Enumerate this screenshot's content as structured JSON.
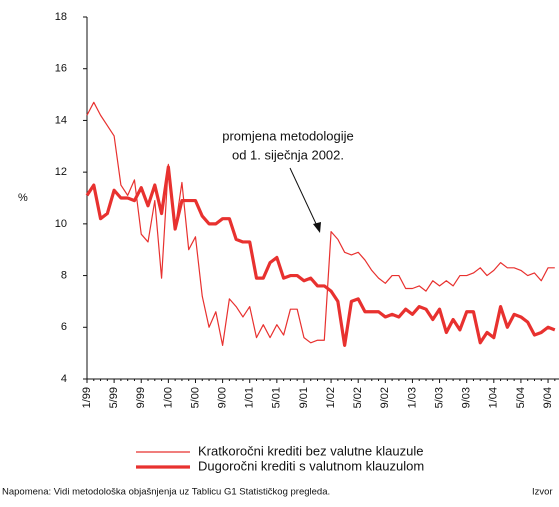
{
  "chart_data": {
    "type": "line",
    "y_label": "%",
    "annotation": [
      "promjena metodologije",
      "od 1. siječnja 2002."
    ],
    "note": "Napomena: Vidi metodološka objašnjenja uz Tablicu G1 Statističkog pregleda.",
    "source": "Izvor",
    "categories": [
      "1/99",
      null,
      null,
      null,
      "5/99",
      null,
      null,
      null,
      "9/99",
      null,
      null,
      null,
      "1/00",
      null,
      null,
      null,
      "5/00",
      null,
      null,
      null,
      "9/00",
      null,
      null,
      null,
      "1/01",
      null,
      null,
      null,
      "5/01",
      null,
      null,
      null,
      "9/01",
      null,
      null,
      null,
      "1/02",
      null,
      null,
      null,
      "5/02",
      null,
      null,
      null,
      "9/02",
      null,
      null,
      null,
      "1/03",
      null,
      null,
      null,
      "5/03",
      null,
      null,
      null,
      "9/03",
      null,
      null,
      null,
      "1/04",
      null,
      null,
      null,
      "5/04",
      null,
      null,
      null,
      "9/04",
      null
    ],
    "series": [
      {
        "name": "Kratkoročni krediti bez valutne klauzule",
        "color": "#e8312f",
        "width": 1.2,
        "values": [
          14.2,
          14.7,
          14.2,
          13.8,
          13.4,
          11.5,
          11.1,
          11.7,
          9.6,
          9.3,
          10.9,
          7.9,
          12.3,
          9.8,
          11.6,
          9.0,
          9.5,
          7.2,
          6.0,
          6.6,
          5.3,
          7.1,
          6.8,
          6.4,
          6.8,
          5.6,
          6.1,
          5.6,
          6.1,
          5.7,
          6.7,
          6.7,
          5.6,
          5.4,
          5.5,
          5.5,
          9.7,
          9.4,
          8.9,
          8.8,
          8.9,
          8.6,
          8.2,
          7.9,
          7.7,
          8.0,
          8.0,
          7.5,
          7.5,
          7.6,
          7.4,
          7.8,
          7.6,
          7.8,
          7.6,
          8.0,
          8.0,
          8.1,
          8.3,
          8.0,
          8.2,
          8.5,
          8.3,
          8.3,
          8.2,
          8.0,
          8.1,
          7.8,
          8.3,
          8.3
        ]
      },
      {
        "name": "Dugoročni krediti s valutnom klauzulom",
        "color": "#e8312f",
        "width": 3.2,
        "values": [
          11.1,
          11.5,
          10.2,
          10.4,
          11.3,
          11.0,
          11.0,
          10.9,
          11.4,
          10.7,
          11.5,
          10.4,
          12.2,
          9.8,
          10.9,
          10.9,
          10.9,
          10.3,
          10.0,
          10.0,
          10.2,
          10.2,
          9.4,
          9.3,
          9.3,
          7.9,
          7.9,
          8.5,
          8.7,
          7.9,
          8.0,
          8.0,
          7.8,
          7.9,
          7.6,
          7.6,
          7.4,
          7.0,
          5.3,
          7.0,
          7.1,
          6.6,
          6.6,
          6.6,
          6.4,
          6.5,
          6.4,
          6.7,
          6.5,
          6.8,
          6.7,
          6.3,
          6.7,
          5.8,
          6.3,
          5.9,
          6.6,
          6.6,
          5.4,
          5.8,
          5.6,
          6.8,
          6.0,
          6.5,
          6.4,
          6.2,
          5.7,
          5.8,
          6.0,
          5.9
        ]
      }
    ],
    "ylim": [
      4,
      18
    ],
    "yticks": [
      4,
      6,
      8,
      10,
      12,
      14,
      16,
      18
    ]
  }
}
